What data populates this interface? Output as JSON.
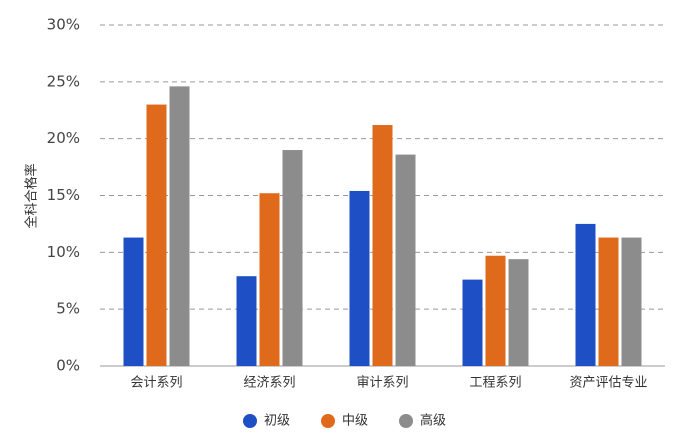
{
  "chart_data": {
    "type": "bar",
    "y_label": "全科合格率",
    "categories": [
      "会计系列",
      "经济系列",
      "审计系列",
      "工程系列",
      "资产评估专业"
    ],
    "series": [
      {
        "name": "初级",
        "color": "#1f4fc4",
        "values": [
          11.3,
          7.9,
          15.4,
          7.6,
          12.5
        ]
      },
      {
        "name": "中级",
        "color": "#e06a1b",
        "values": [
          23.0,
          15.2,
          21.2,
          9.7,
          11.3
        ]
      },
      {
        "name": "高级",
        "color": "#8c8c8c",
        "values": [
          24.6,
          19.0,
          18.6,
          9.4,
          11.3
        ]
      }
    ],
    "ylim": [
      0,
      30
    ],
    "yticks": [
      {
        "value": 0,
        "label": "0%"
      },
      {
        "value": 5,
        "label": "5%"
      },
      {
        "value": 10,
        "label": "10%"
      },
      {
        "value": 15,
        "label": "15%"
      },
      {
        "value": 20,
        "label": "20%"
      },
      {
        "value": 25,
        "label": "25%"
      },
      {
        "value": 30,
        "label": "30%"
      }
    ],
    "grid": true,
    "legend": "bottom"
  }
}
